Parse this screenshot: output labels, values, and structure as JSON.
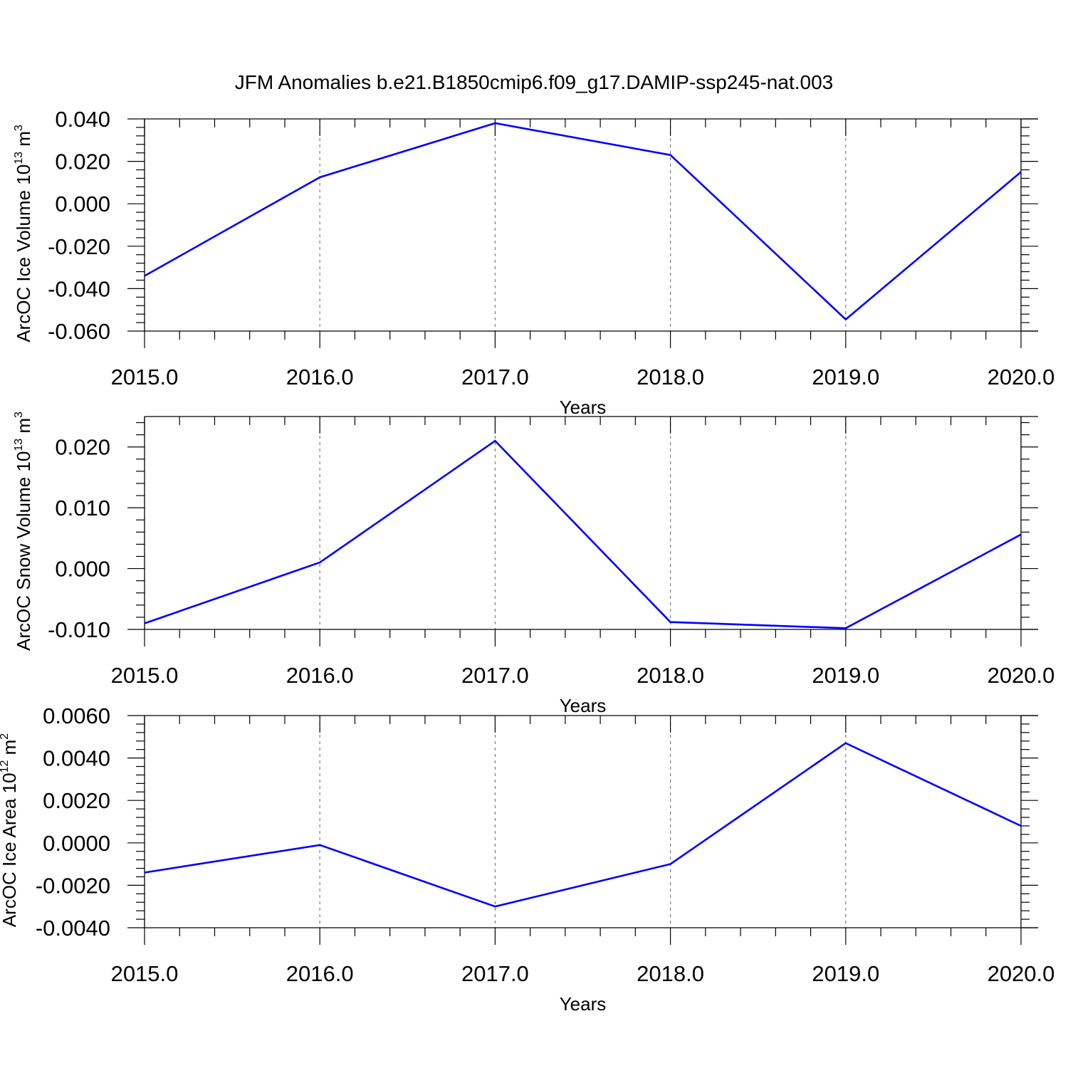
{
  "title": "JFM Anomalies b.e21.B1850cmip6.f09_g17.DAMIP-ssp245-nat.003",
  "colors": {
    "line": "#0000ff",
    "grid": "#7a7a7a"
  },
  "chart_data": [
    {
      "type": "line",
      "ylabel_main": "ArcOC Ice Volume 10",
      "ylabel_exp": "13",
      "ylabel_unit": "m",
      "ylabel_unit_exp": "3",
      "xlabel": "Years",
      "x": [
        2015,
        2016,
        2017,
        2018,
        2019,
        2020
      ],
      "x_tick_labels": [
        "2015.0",
        "2016.0",
        "2017.0",
        "2018.0",
        "2019.0",
        "2020.0"
      ],
      "y": [
        -0.034,
        0.0125,
        0.038,
        0.023,
        -0.0545,
        0.015
      ],
      "ylim": [
        -0.06,
        0.04
      ],
      "y_ticks": [
        -0.06,
        -0.04,
        -0.02,
        0.0,
        0.02,
        0.04
      ],
      "y_tick_labels": [
        "-0.060",
        "-0.040",
        "-0.020",
        "0.000",
        "0.020",
        "0.040"
      ],
      "grid": "vertical dashed at major x ticks"
    },
    {
      "type": "line",
      "ylabel_main": "ArcOC Snow Volume 10",
      "ylabel_exp": "13",
      "ylabel_unit": "m",
      "ylabel_unit_exp": "3",
      "xlabel": "Years",
      "x": [
        2015,
        2016,
        2017,
        2018,
        2019,
        2020
      ],
      "x_tick_labels": [
        "2015.0",
        "2016.0",
        "2017.0",
        "2018.0",
        "2019.0",
        "2020.0"
      ],
      "y": [
        -0.009,
        0.001,
        0.021,
        -0.0088,
        -0.0098,
        0.0056
      ],
      "ylim": [
        -0.01,
        0.025
      ],
      "y_ticks": [
        -0.01,
        0.0,
        0.01,
        0.02
      ],
      "y_tick_labels": [
        "-0.010",
        "0.000",
        "0.010",
        "0.020"
      ],
      "grid": "vertical dashed at major x ticks"
    },
    {
      "type": "line",
      "ylabel_main": "ArcOC Ice Area 10",
      "ylabel_exp": "12",
      "ylabel_unit": "m",
      "ylabel_unit_exp": "2",
      "xlabel": "Years",
      "x": [
        2015,
        2016,
        2017,
        2018,
        2019,
        2020
      ],
      "x_tick_labels": [
        "2015.0",
        "2016.0",
        "2017.0",
        "2018.0",
        "2019.0",
        "2020.0"
      ],
      "y": [
        -0.0014,
        -0.0001,
        -0.003,
        -0.001,
        0.0047,
        0.0008
      ],
      "ylim": [
        -0.004,
        0.006
      ],
      "y_ticks": [
        -0.004,
        -0.002,
        0.0,
        0.002,
        0.004,
        0.006
      ],
      "y_tick_labels": [
        "-0.0040",
        "-0.0020",
        "0.0000",
        "0.0020",
        "0.0040",
        "0.0060"
      ],
      "grid": "vertical dashed at major x ticks"
    }
  ]
}
